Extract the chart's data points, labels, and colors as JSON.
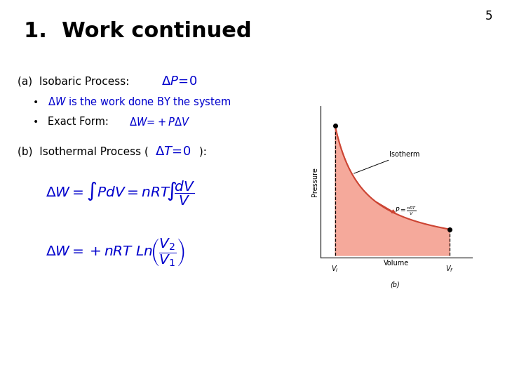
{
  "title": "1.  Work continued",
  "title_bg": "#ffffa0",
  "slide_bg": "#ffffff",
  "slide_number": "5",
  "blue": "#0000cc",
  "black": "#000000",
  "fill_color": "#f4a090",
  "curve_color": "#cc4433",
  "graph_title": "Isotherm",
  "graph_xlabel": "Volume",
  "graph_ylabel": "Pressure",
  "graph_sublabel": "(b)",
  "vi_label": "$V_i$",
  "vf_label": "$V_f$"
}
